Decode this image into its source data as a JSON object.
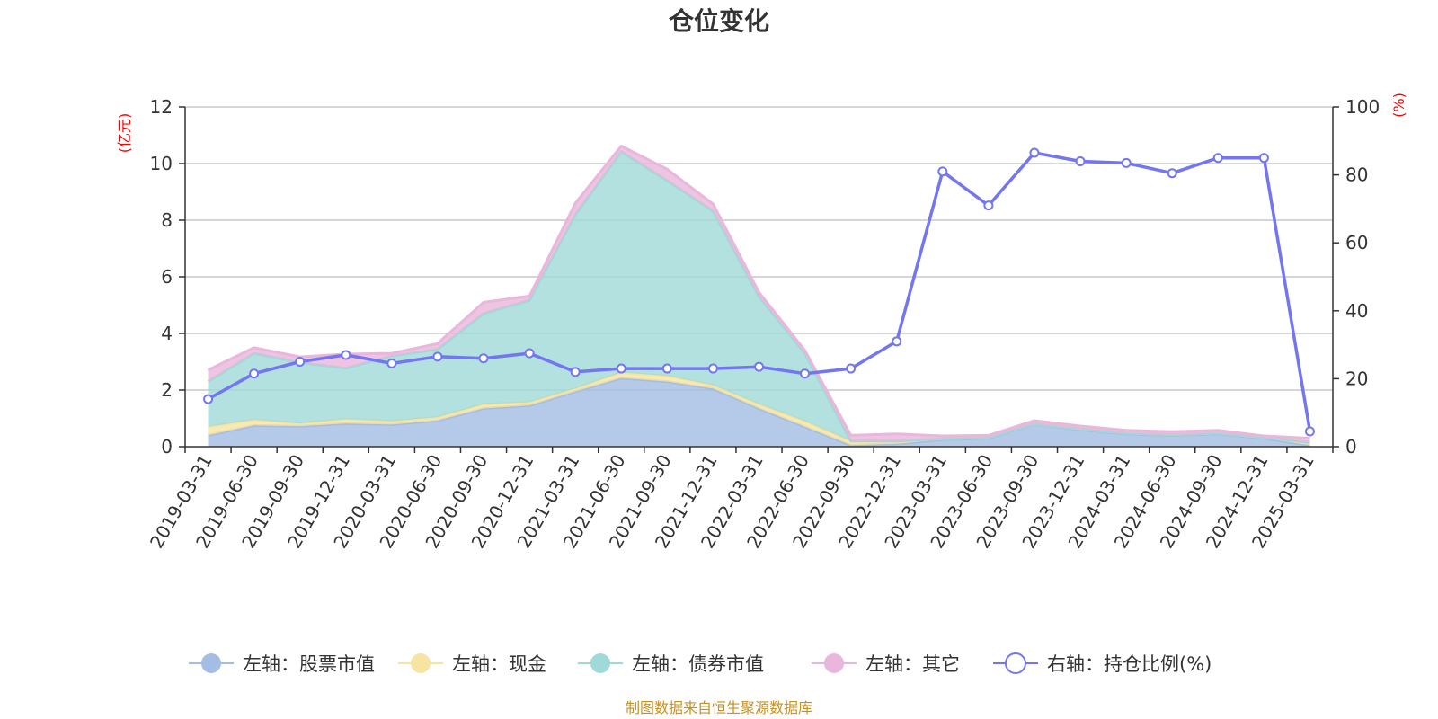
{
  "chart_data": {
    "type": "area",
    "title": "仓位变化",
    "left_axis_unit": "(亿元)",
    "right_axis_unit": "(%)",
    "source": "制图数据来自恒生聚源数据库",
    "categories": [
      "2019-03-31",
      "2019-06-30",
      "2019-09-30",
      "2019-12-31",
      "2020-03-31",
      "2020-06-30",
      "2020-09-30",
      "2020-12-31",
      "2021-03-31",
      "2021-06-30",
      "2021-09-30",
      "2021-12-31",
      "2022-03-31",
      "2022-06-30",
      "2022-09-30",
      "2022-12-31",
      "2023-03-31",
      "2023-06-30",
      "2023-09-30",
      "2023-12-31",
      "2024-03-31",
      "2024-06-30",
      "2024-09-30",
      "2024-12-31",
      "2025-03-31"
    ],
    "left_axis": {
      "ylim": [
        0,
        12
      ],
      "ticks": [
        0,
        2,
        4,
        6,
        8,
        10,
        12
      ]
    },
    "right_axis": {
      "ylim": [
        0,
        100
      ],
      "ticks": [
        0,
        20,
        40,
        60,
        80,
        100
      ]
    },
    "grid": true,
    "legend_position": "bottom",
    "stacked_series": [
      {
        "name": "左轴：股票市值",
        "color": "#a3bde4",
        "values": [
          0.4,
          0.75,
          0.72,
          0.82,
          0.78,
          0.92,
          1.35,
          1.45,
          1.95,
          2.42,
          2.3,
          2.05,
          1.35,
          0.7,
          0.05,
          0.1,
          0.25,
          0.3,
          0.8,
          0.6,
          0.45,
          0.4,
          0.45,
          0.3,
          0.05
        ]
      },
      {
        "name": "左轴：现金",
        "color": "#f7e4a0",
        "values": [
          0.3,
          0.2,
          0.1,
          0.15,
          0.12,
          0.12,
          0.15,
          0.12,
          0.1,
          0.2,
          0.2,
          0.12,
          0.15,
          0.2,
          0.15,
          0.1,
          0.03,
          0.03,
          0.02,
          0.03,
          0.03,
          0.03,
          0.03,
          0.03,
          0.1
        ]
      },
      {
        "name": "左轴：债券市值",
        "color": "#9fd9d8",
        "values": [
          1.6,
          2.35,
          2.15,
          1.8,
          2.3,
          2.4,
          3.2,
          3.6,
          6.15,
          7.8,
          6.9,
          6.15,
          3.8,
          2.4,
          0.0,
          0.0,
          0.0,
          0.0,
          0.0,
          0.0,
          0.0,
          0.0,
          0.0,
          0.0,
          0.0
        ]
      },
      {
        "name": "左轴：其它",
        "color": "#e8b7db",
        "values": [
          0.4,
          0.2,
          0.2,
          0.5,
          0.1,
          0.2,
          0.4,
          0.15,
          0.4,
          0.2,
          0.4,
          0.25,
          0.15,
          0.1,
          0.2,
          0.25,
          0.1,
          0.07,
          0.1,
          0.1,
          0.1,
          0.1,
          0.1,
          0.05,
          0.15
        ]
      }
    ],
    "line_series": {
      "name": "右轴：持仓比例(%)",
      "color": "#7476f0",
      "values": [
        14.0,
        21.5,
        25.0,
        27.0,
        24.5,
        26.5,
        26.0,
        27.5,
        22.0,
        23.0,
        23.0,
        23.0,
        23.5,
        21.5,
        23.0,
        31.0,
        81.0,
        71.0,
        86.5,
        84.0,
        83.5,
        80.5,
        85.0,
        85.0,
        4.5
      ]
    }
  }
}
